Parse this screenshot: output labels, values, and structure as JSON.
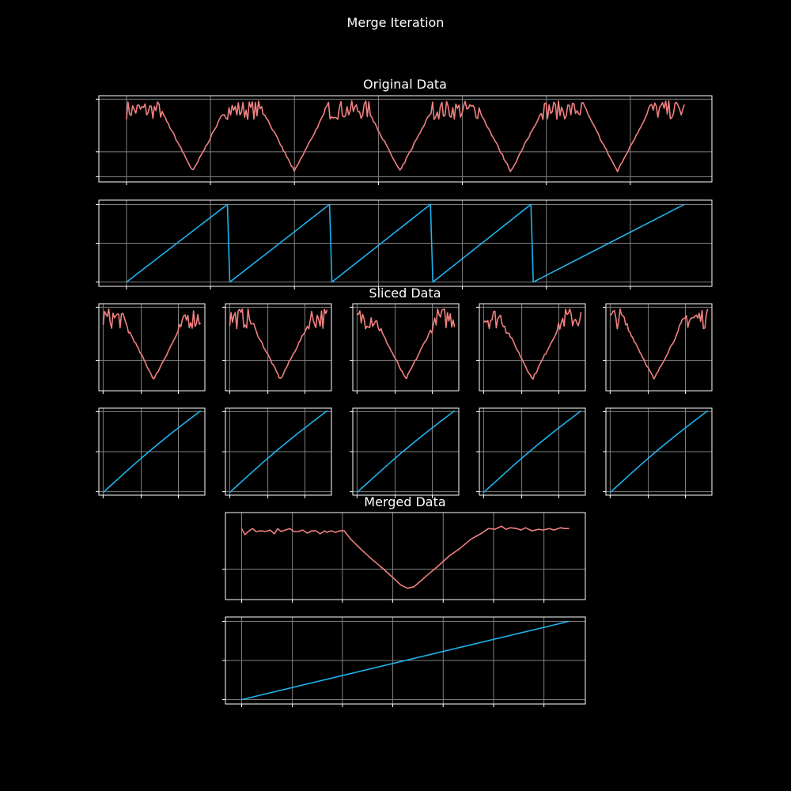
{
  "figure": {
    "title": "Merge Iteration",
    "sections": {
      "original": "Original Data",
      "sliced": "Sliced Data",
      "merged": "Merged Data"
    },
    "colors": {
      "background": "#000000",
      "signal": "#f08080",
      "ramp": "#1eb4ee",
      "axes": "#ffffff",
      "grid": "#808080"
    }
  },
  "chart_data": [
    {
      "type": "line",
      "panel": "original-signal",
      "x": [
        0,
        5
      ],
      "segments": 5,
      "grid": true,
      "ticks_labeled": false,
      "pattern": "noisy plateau near the top with one V-shaped dip per segment",
      "segment_dip_centers": [
        0.69,
        1.96,
        3.27,
        4.66,
        5.96
      ],
      "dip_depth": 0.75,
      "noise_amplitude": 0.25,
      "series": [
        {
          "color": "#f08080"
        }
      ]
    },
    {
      "type": "line",
      "panel": "original-ramp",
      "grid": true,
      "ticks_labeled": false,
      "pattern": "sawtooth",
      "ramp_starts": [
        0.0,
        1.32,
        2.67,
        3.98,
        5.3
      ],
      "ramp_ends": [
        1.32,
        2.67,
        3.98,
        5.3,
        6.64
      ],
      "ylim": [
        0,
        1
      ],
      "series": [
        {
          "color": "#1eb4ee"
        }
      ]
    },
    {
      "type": "line",
      "panel": "sliced-signal",
      "count": 5,
      "grid": true,
      "ticks_labeled": false,
      "dip_centers": [
        0.52,
        0.52,
        0.5,
        0.5,
        0.45
      ],
      "series": [
        {
          "color": "#f08080"
        }
      ]
    },
    {
      "type": "line",
      "panel": "sliced-ramp",
      "count": 5,
      "grid": true,
      "ticks_labeled": false,
      "y_from": 0,
      "y_to": 1,
      "series": [
        {
          "color": "#1eb4ee"
        }
      ]
    },
    {
      "type": "line",
      "panel": "merged-signal",
      "grid": true,
      "ticks_labeled": false,
      "points": [
        [
          0.0,
          0.86
        ],
        [
          0.015,
          0.78
        ],
        [
          0.03,
          0.82
        ],
        [
          0.05,
          0.86
        ],
        [
          0.065,
          0.82
        ],
        [
          0.09,
          0.83
        ],
        [
          0.11,
          0.82
        ],
        [
          0.13,
          0.84
        ],
        [
          0.15,
          0.79
        ],
        [
          0.165,
          0.86
        ],
        [
          0.18,
          0.82
        ],
        [
          0.2,
          0.84
        ],
        [
          0.22,
          0.86
        ],
        [
          0.24,
          0.82
        ],
        [
          0.26,
          0.82
        ],
        [
          0.28,
          0.84
        ],
        [
          0.3,
          0.8
        ],
        [
          0.32,
          0.83
        ],
        [
          0.34,
          0.83
        ],
        [
          0.36,
          0.79
        ],
        [
          0.38,
          0.83
        ],
        [
          0.39,
          0.81
        ],
        [
          0.41,
          0.83
        ],
        [
          0.43,
          0.81
        ],
        [
          0.45,
          0.83
        ],
        [
          0.47,
          0.83
        ],
        [
          0.5,
          0.72
        ],
        [
          0.55,
          0.58
        ],
        [
          0.6,
          0.45
        ],
        [
          0.65,
          0.33
        ],
        [
          0.7,
          0.2
        ],
        [
          0.73,
          0.12
        ],
        [
          0.76,
          0.08
        ],
        [
          0.79,
          0.1
        ],
        [
          0.81,
          0.15
        ],
        [
          0.85,
          0.25
        ],
        [
          0.9,
          0.37
        ],
        [
          0.95,
          0.5
        ],
        [
          1.0,
          0.6
        ],
        [
          1.05,
          0.72
        ],
        [
          1.1,
          0.8
        ],
        [
          1.13,
          0.86
        ],
        [
          1.16,
          0.85
        ],
        [
          1.19,
          0.89
        ],
        [
          1.21,
          0.85
        ],
        [
          1.23,
          0.87
        ],
        [
          1.26,
          0.86
        ],
        [
          1.28,
          0.84
        ],
        [
          1.3,
          0.87
        ],
        [
          1.33,
          0.83
        ],
        [
          1.36,
          0.85
        ],
        [
          1.38,
          0.84
        ],
        [
          1.41,
          0.86
        ],
        [
          1.43,
          0.84
        ],
        [
          1.46,
          0.87
        ],
        [
          1.48,
          0.86
        ],
        [
          1.5,
          0.86
        ]
      ],
      "series": [
        {
          "color": "#f08080"
        }
      ]
    },
    {
      "type": "line",
      "panel": "merged-ramp",
      "grid": true,
      "ticks_labeled": false,
      "points": [
        [
          0,
          0
        ],
        [
          1,
          1
        ]
      ],
      "series": [
        {
          "color": "#1eb4ee"
        }
      ]
    }
  ]
}
